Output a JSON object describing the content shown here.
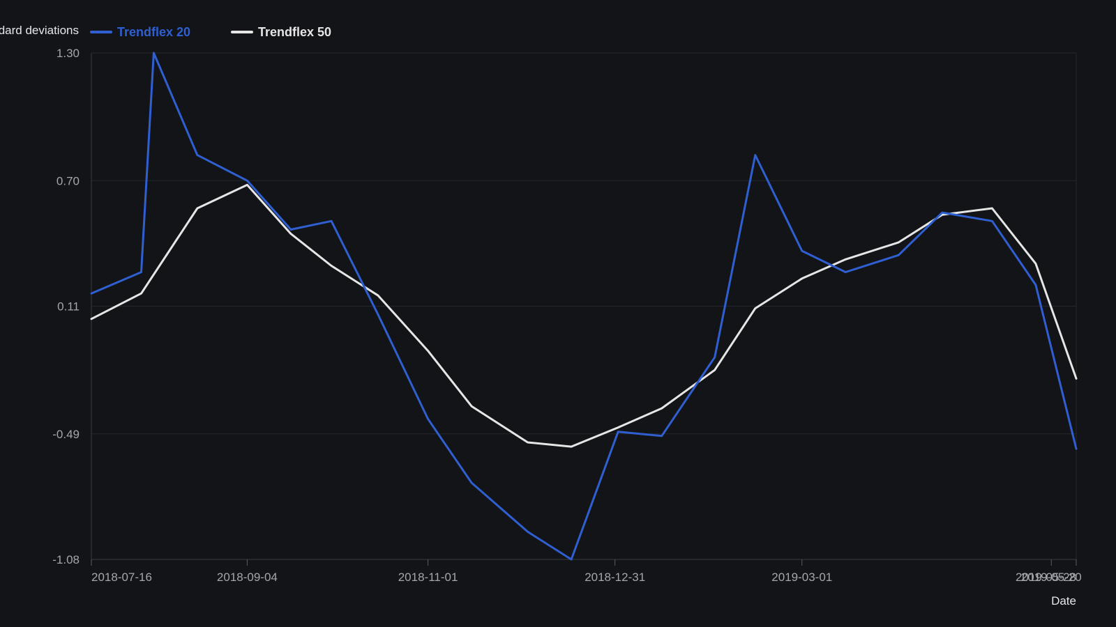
{
  "chart_data": {
    "type": "line",
    "ylabel": "Standard deviations",
    "xlabel": "Date",
    "ylim": [
      -1.08,
      1.3
    ],
    "yticks": [
      "1.30",
      "0.70",
      "0.11",
      "-0.49",
      "-1.08"
    ],
    "xticks": [
      "2018-07-16",
      "2018-09-04",
      "2018-11-01",
      "2018-12-31",
      "2019-03-01",
      "2019-05-20",
      "2019-05-28"
    ],
    "grid": true,
    "legend_position": "top",
    "x": [
      "2018-07-16",
      "2018-08-01",
      "2018-08-05",
      "2018-08-19",
      "2018-09-04",
      "2018-09-18",
      "2018-10-01",
      "2018-10-16",
      "2018-11-01",
      "2018-11-15",
      "2018-12-03",
      "2018-12-17",
      "2019-01-01",
      "2019-01-15",
      "2019-02-01",
      "2019-02-14",
      "2019-03-01",
      "2019-03-15",
      "2019-04-01",
      "2019-04-15",
      "2019-05-01",
      "2019-05-15",
      "2019-05-28"
    ],
    "series": [
      {
        "name": "Trendflex 20",
        "color": "#2f5fd0",
        "values": [
          0.17,
          0.27,
          1.3,
          0.82,
          0.7,
          0.47,
          0.51,
          0.07,
          -0.42,
          -0.72,
          -0.95,
          -1.08,
          -0.48,
          -0.5,
          -0.13,
          0.82,
          0.37,
          0.27,
          0.35,
          0.55,
          0.51,
          0.21,
          -0.56
        ]
      },
      {
        "name": "Trendflex 50",
        "color": "#e6e6e6",
        "values": [
          0.05,
          0.17,
          null,
          0.57,
          0.68,
          0.45,
          0.3,
          0.16,
          -0.1,
          -0.36,
          -0.53,
          -0.55,
          -0.46,
          -0.37,
          -0.19,
          0.1,
          0.24,
          0.33,
          0.41,
          0.54,
          0.57,
          0.31,
          -0.23
        ]
      }
    ]
  }
}
